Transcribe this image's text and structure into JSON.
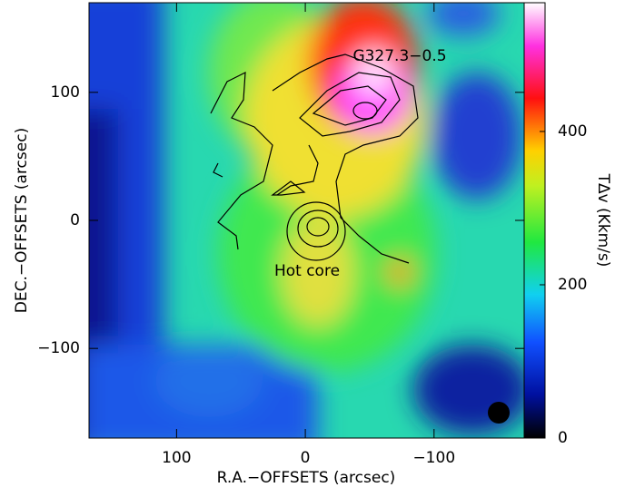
{
  "chart_data": {
    "type": "image",
    "x_label": "R.A.−OFFSETS (arcsec)",
    "y_label": "DEC.−OFFSETS (arcsec)",
    "xlim": [
      168,
      -170
    ],
    "ylim": [
      -170,
      170
    ],
    "xticks": [
      100,
      0,
      {
        "value": -100,
        "label": "−100"
      }
    ],
    "yticks": [
      {
        "value": -100,
        "label": "−100"
      },
      0,
      100
    ],
    "colorbar": {
      "label": "TΔv (Kkm/s)",
      "lim": [
        0,
        568
      ],
      "ticks": [
        0,
        200,
        400
      ]
    },
    "annotations": [
      "G327.3−0.5",
      "Hot core"
    ]
  }
}
